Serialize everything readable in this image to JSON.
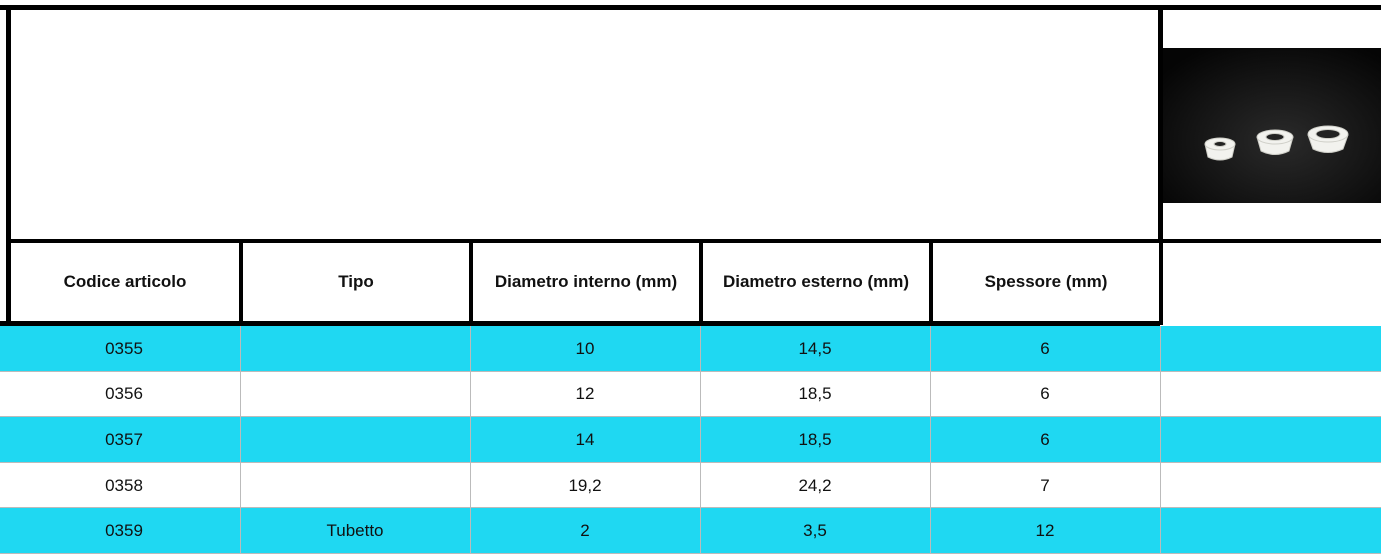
{
  "header": {
    "columns": [
      "Codice articolo",
      "Tipo",
      "Diametro interno (mm)",
      "Diametro esterno (mm)",
      "Spessore (mm)"
    ]
  },
  "table": {
    "rows": [
      {
        "codice": "0355",
        "interno": "10",
        "esterno": "14,5",
        "spessore": "6"
      },
      {
        "codice": "0356",
        "interno": "12",
        "esterno": "18,5",
        "spessore": "6"
      },
      {
        "codice": "0357",
        "interno": "14",
        "esterno": "18,5",
        "spessore": "6"
      },
      {
        "codice": "0358",
        "interno": "19,2",
        "esterno": "24,2",
        "spessore": "7"
      },
      {
        "codice": "0359",
        "tipo": "Tubetto",
        "interno": "2",
        "esterno": "3,5",
        "spessore": "12"
      }
    ]
  }
}
